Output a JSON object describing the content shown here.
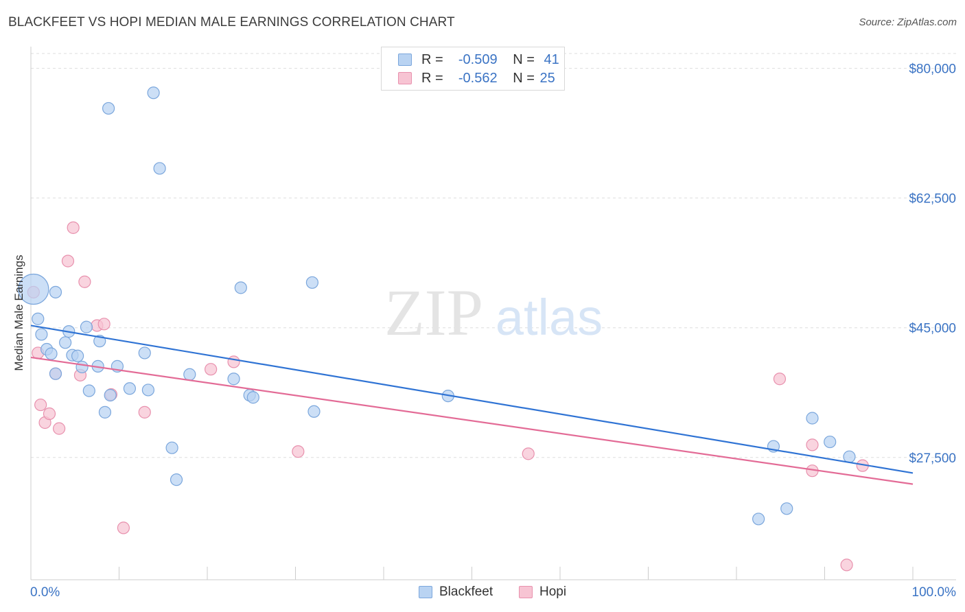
{
  "title": "BLACKFEET VS HOPI MEDIAN MALE EARNINGS CORRELATION CHART",
  "source": "Source: ZipAtlas.com",
  "watermark": {
    "zip": "ZIP",
    "atlas": "atlas"
  },
  "legend_top": {
    "rows": [
      {
        "r_label": "R =",
        "r_value": "-0.509",
        "n_label": "N =",
        "n_value": "41"
      },
      {
        "r_label": "R =",
        "r_value": "-0.562",
        "n_label": "N =",
        "n_value": "25"
      }
    ]
  },
  "legend_bottom": {
    "items": [
      "Blackfeet",
      "Hopi"
    ]
  },
  "colors": {
    "blackfeet_fill": "#b9d3f2",
    "blackfeet_stroke": "#7aa6dc",
    "blackfeet_line": "#2f73d4",
    "hopi_fill": "#f7c4d3",
    "hopi_stroke": "#e890ad",
    "hopi_line": "#e36b96",
    "tick_label": "#3a73c4",
    "grid": "#dddddd"
  },
  "chart_data": {
    "type": "scatter",
    "title": "BLACKFEET VS HOPI MEDIAN MALE EARNINGS CORRELATION CHART",
    "xlabel": "",
    "ylabel": "Median Male Earnings",
    "xlim": [
      0,
      100
    ],
    "ylim": [
      11000,
      82000
    ],
    "x_tick_labels": [
      "0.0%",
      "100.0%"
    ],
    "y_ticks": [
      80000,
      62500,
      45000,
      27500
    ],
    "y_tick_labels": [
      "$80,000",
      "$62,500",
      "$45,000",
      "$27,500"
    ],
    "series": [
      {
        "name": "Blackfeet",
        "r": -0.509,
        "n": 41,
        "trend": {
          "x": [
            0,
            100
          ],
          "y": [
            45300,
            25400
          ]
        },
        "points": [
          {
            "x": 0.3,
            "y": 50200,
            "big": true
          },
          {
            "x": 0.8,
            "y": 46200
          },
          {
            "x": 1.2,
            "y": 44100
          },
          {
            "x": 1.8,
            "y": 42100
          },
          {
            "x": 2.3,
            "y": 41500
          },
          {
            "x": 2.8,
            "y": 38800
          },
          {
            "x": 2.8,
            "y": 49800
          },
          {
            "x": 3.9,
            "y": 43000
          },
          {
            "x": 4.3,
            "y": 44500
          },
          {
            "x": 4.7,
            "y": 41300
          },
          {
            "x": 5.3,
            "y": 41200
          },
          {
            "x": 5.8,
            "y": 39700
          },
          {
            "x": 6.3,
            "y": 45100
          },
          {
            "x": 6.6,
            "y": 36500
          },
          {
            "x": 7.6,
            "y": 39800
          },
          {
            "x": 7.8,
            "y": 43200
          },
          {
            "x": 8.4,
            "y": 33600
          },
          {
            "x": 8.8,
            "y": 74600
          },
          {
            "x": 9.0,
            "y": 35900
          },
          {
            "x": 9.8,
            "y": 39800
          },
          {
            "x": 11.2,
            "y": 36800
          },
          {
            "x": 12.9,
            "y": 41600
          },
          {
            "x": 13.3,
            "y": 36600
          },
          {
            "x": 13.9,
            "y": 76700
          },
          {
            "x": 14.6,
            "y": 66500
          },
          {
            "x": 16.0,
            "y": 28800
          },
          {
            "x": 16.5,
            "y": 24500
          },
          {
            "x": 18.0,
            "y": 38700
          },
          {
            "x": 23.0,
            "y": 38100
          },
          {
            "x": 23.8,
            "y": 50400
          },
          {
            "x": 24.8,
            "y": 35900
          },
          {
            "x": 25.2,
            "y": 35600
          },
          {
            "x": 31.9,
            "y": 51100
          },
          {
            "x": 32.1,
            "y": 33700
          },
          {
            "x": 47.3,
            "y": 35800
          },
          {
            "x": 82.5,
            "y": 19200
          },
          {
            "x": 84.2,
            "y": 29000
          },
          {
            "x": 85.7,
            "y": 20600
          },
          {
            "x": 88.6,
            "y": 32800
          },
          {
            "x": 90.6,
            "y": 29600
          },
          {
            "x": 92.8,
            "y": 27600
          }
        ]
      },
      {
        "name": "Hopi",
        "r": -0.562,
        "n": 25,
        "trend": {
          "x": [
            0,
            100
          ],
          "y": [
            41000,
            23900
          ]
        },
        "points": [
          {
            "x": 0.3,
            "y": 49800
          },
          {
            "x": 0.8,
            "y": 41600
          },
          {
            "x": 1.1,
            "y": 34600
          },
          {
            "x": 1.6,
            "y": 32200
          },
          {
            "x": 2.1,
            "y": 33400
          },
          {
            "x": 2.8,
            "y": 38800
          },
          {
            "x": 3.2,
            "y": 31400
          },
          {
            "x": 4.2,
            "y": 54000
          },
          {
            "x": 4.8,
            "y": 58500
          },
          {
            "x": 5.6,
            "y": 38600
          },
          {
            "x": 6.1,
            "y": 51200
          },
          {
            "x": 7.5,
            "y": 45300
          },
          {
            "x": 8.3,
            "y": 45500
          },
          {
            "x": 9.1,
            "y": 36000
          },
          {
            "x": 10.5,
            "y": 18000
          },
          {
            "x": 12.9,
            "y": 33600
          },
          {
            "x": 20.4,
            "y": 39400
          },
          {
            "x": 23.0,
            "y": 40400
          },
          {
            "x": 30.3,
            "y": 28300
          },
          {
            "x": 56.4,
            "y": 28000
          },
          {
            "x": 84.9,
            "y": 38100
          },
          {
            "x": 88.6,
            "y": 29200
          },
          {
            "x": 88.6,
            "y": 25700
          },
          {
            "x": 92.5,
            "y": 13000
          },
          {
            "x": 94.3,
            "y": 26400
          }
        ]
      }
    ]
  }
}
